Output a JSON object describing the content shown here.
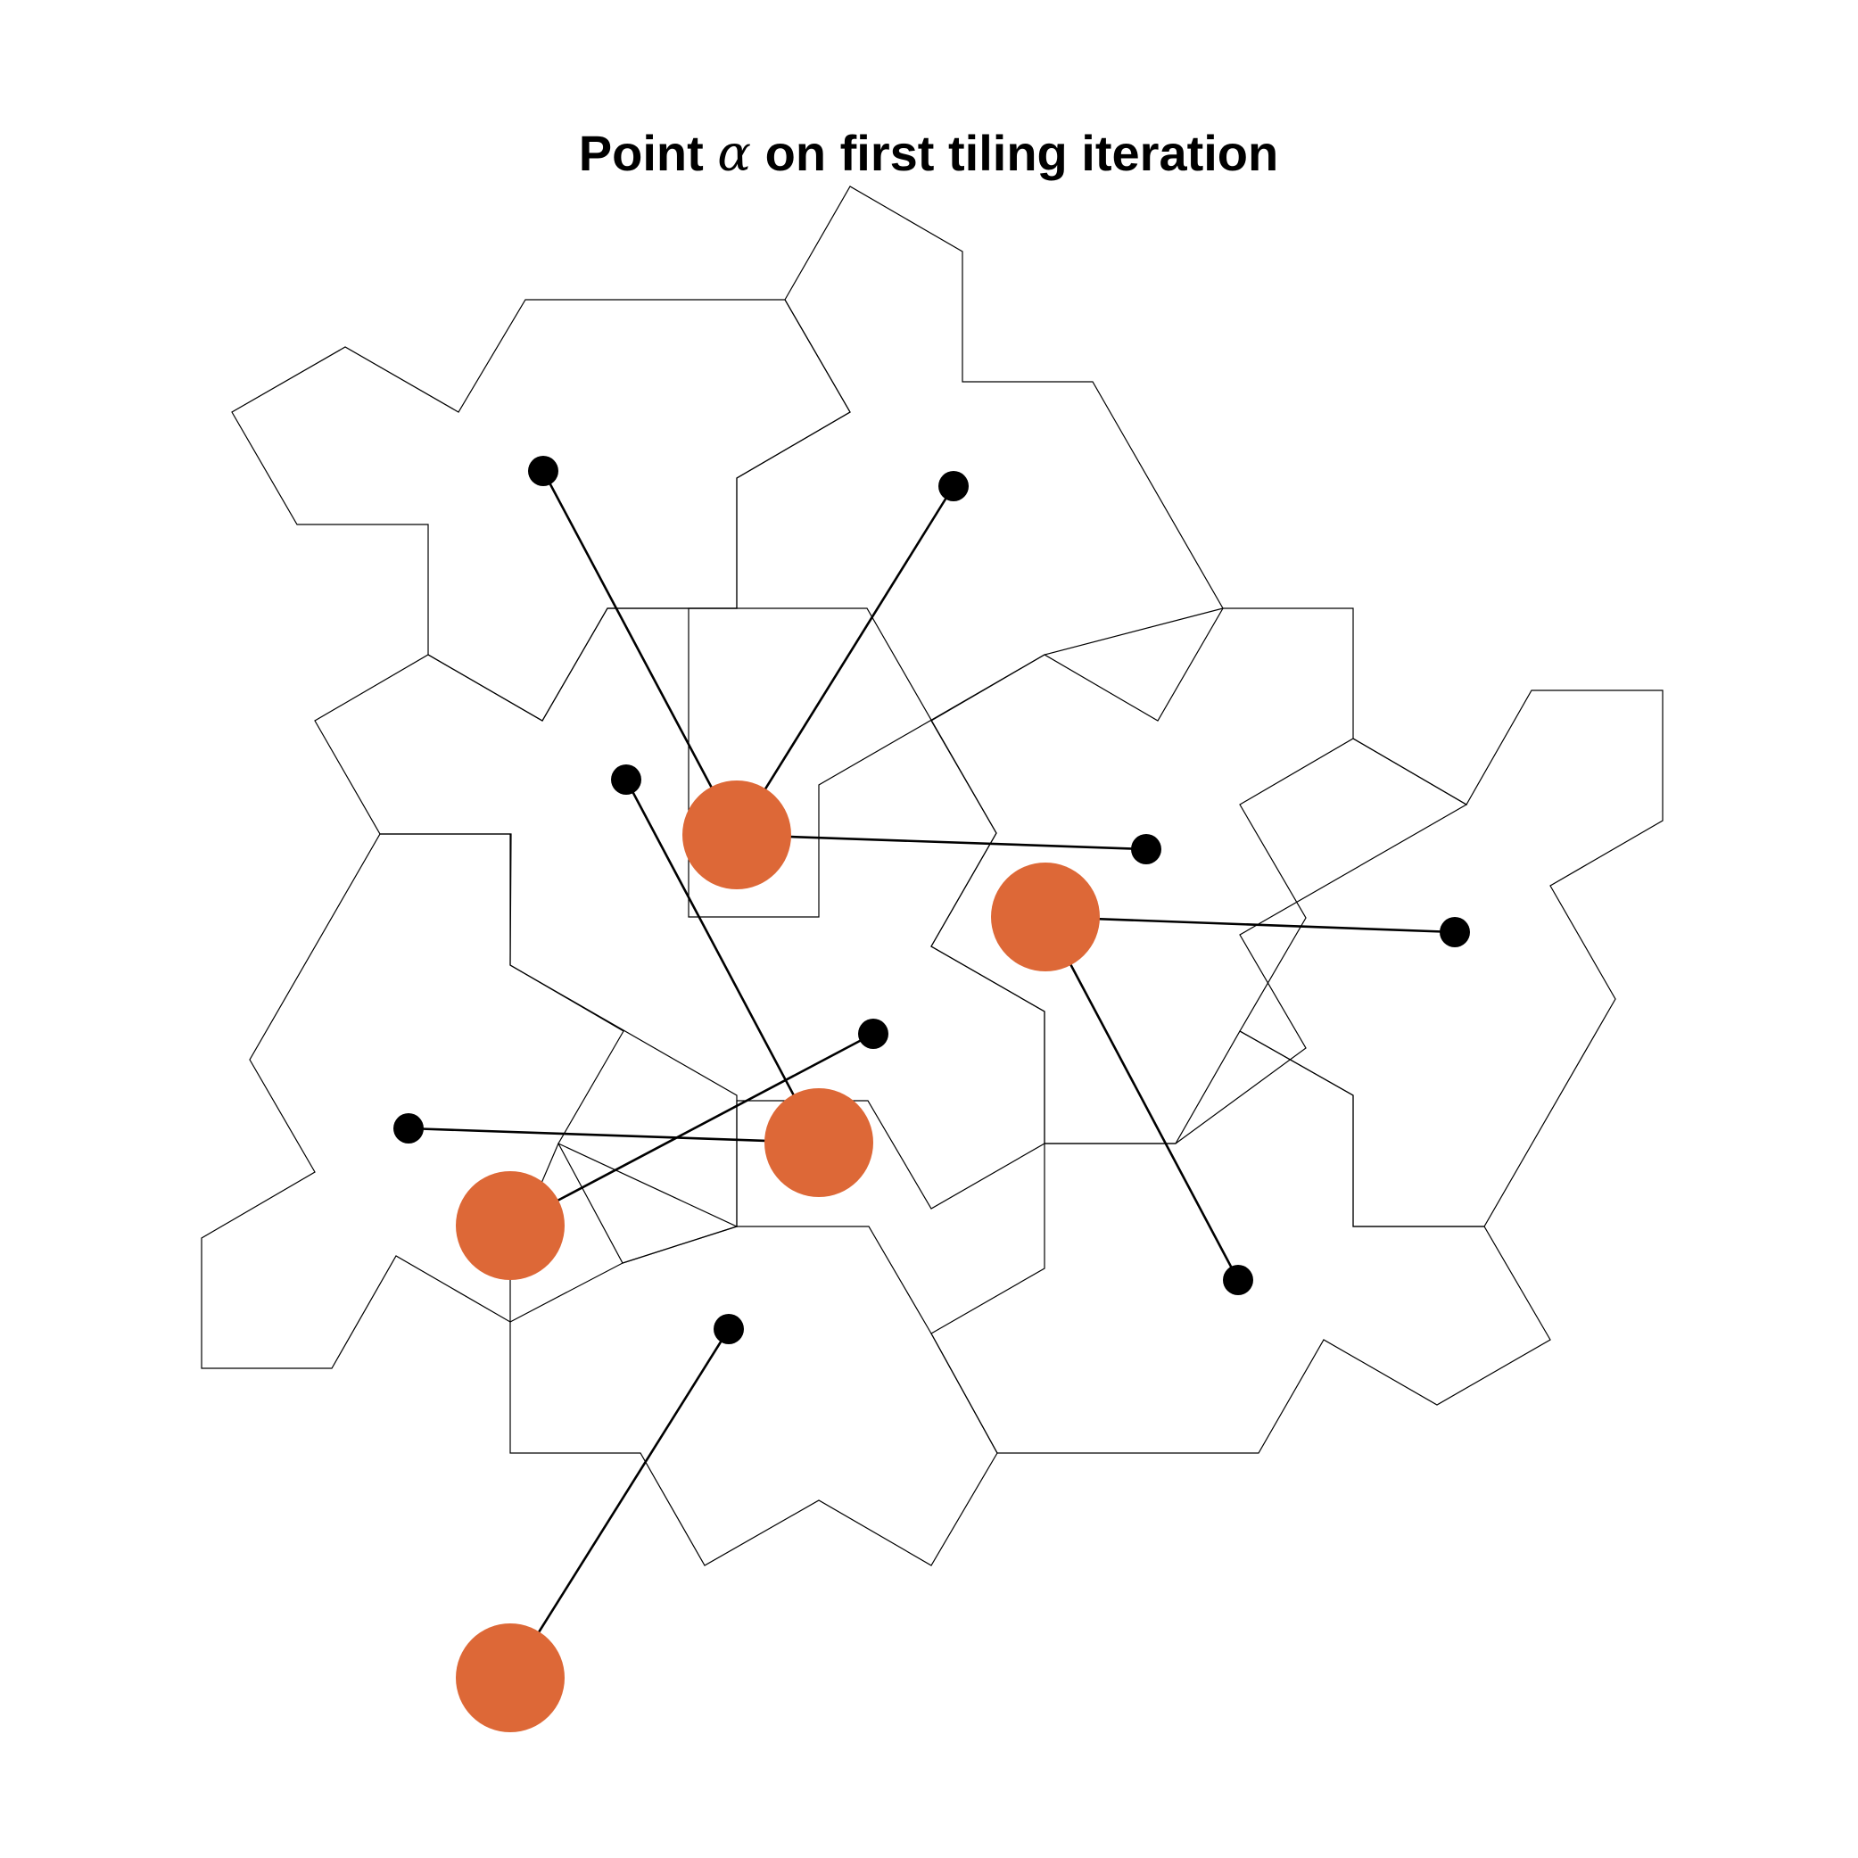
{
  "title": {
    "before": "Point ",
    "symbol": "α",
    "after": " on first tiling iteration"
  },
  "colors": {
    "alpha_point": "#DD6837",
    "tile_point": "#000000",
    "tile_outline": "#000000",
    "background": "#FFFFFF"
  }
}
